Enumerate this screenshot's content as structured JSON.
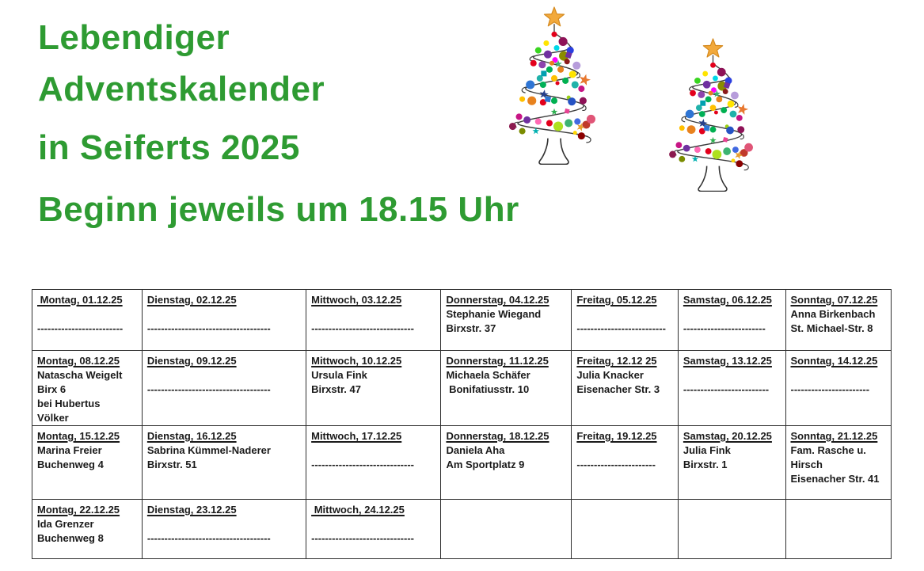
{
  "title": {
    "lines": [
      "Lebendiger",
      "Adventskalender",
      "in Seiferts 2025",
      "Beginn jeweils um 18.15 Uhr"
    ],
    "color": "#2e9b32"
  },
  "decorations": {
    "tree_count": 2,
    "tree_icon": "christmas-tree-icon",
    "star_color": "#f2a93c",
    "garland_color": "#3d3d3d",
    "ornament_palette": [
      "#e3001b",
      "#8e1257",
      "#ffe400",
      "#00d8e8",
      "#39d520",
      "#2a3fe0",
      "#7030a0",
      "#8a8c00",
      "#ff00ff",
      "#e8821e",
      "#b79ddb",
      "#00b057",
      "#20b2aa",
      "#ffc000",
      "#2e75d4",
      "#c71585",
      "#ff69b4",
      "#aee01f",
      "#3cb371",
      "#4169e1",
      "#8b0000",
      "#8b1a4f",
      "#c0392b",
      "#e05577"
    ]
  },
  "table": {
    "rows": [
      [
        [
          " Montag, 01.12.25",
          "",
          "-------------------------"
        ],
        [
          "Dienstag, 02.12.25",
          "",
          "------------------------------------"
        ],
        [
          "Mittwoch, 03.12.25",
          "",
          "------------------------------"
        ],
        [
          "Donnerstag, 04.12.25",
          "Stephanie Wiegand",
          "Birxstr. 37"
        ],
        [
          "Freitag, 05.12.25",
          "",
          "--------------------------"
        ],
        [
          "Samstag, 06.12.25",
          "",
          "------------------------"
        ],
        [
          "Sonntag, 07.12.25",
          "Anna Birkenbach",
          "St. Michael-Str. 8"
        ]
      ],
      [
        [
          "Montag, 08.12.25",
          "Natascha Weigelt",
          "Birx 6",
          "bei Hubertus",
          "Völker"
        ],
        [
          "Dienstag, 09.12.25",
          "",
          "------------------------------------"
        ],
        [
          "Mittwoch, 10.12.25",
          "Ursula Fink",
          "Birxstr. 47"
        ],
        [
          "Donnerstag, 11.12.25",
          "Michaela Schäfer",
          " Bonifatiusstr. 10"
        ],
        [
          "Freitag, 12.12 25",
          "Julia Knacker",
          "Eisenacher Str. 3"
        ],
        [
          "Samstag, 13.12.25",
          "",
          "-------------------------"
        ],
        [
          "Sonntag, 14.12.25",
          "",
          "-----------------------"
        ]
      ],
      [
        [
          "Montag, 15.12.25",
          "Marina Freier",
          "Buchenweg 4"
        ],
        [
          "Dienstag, 16.12.25",
          "Sabrina Kümmel-Naderer",
          "Birxstr. 51"
        ],
        [
          "Mittwoch, 17.12.25",
          "",
          "------------------------------"
        ],
        [
          "Donnerstag, 18.12.25",
          "Daniela Aha",
          "Am Sportplatz 9"
        ],
        [
          "Freitag, 19.12.25",
          "",
          "-----------------------"
        ],
        [
          "Samstag, 20.12.25",
          "Julia Fink",
          "Birxstr. 1"
        ],
        [
          "Sonntag, 21.12.25",
          "Fam. Rasche u.",
          "Hirsch",
          "Eisenacher Str. 41"
        ]
      ],
      [
        [
          "Montag, 22.12.25",
          "Ida Grenzer",
          "Buchenweg 8"
        ],
        [
          "Dienstag, 23.12.25",
          "",
          "------------------------------------"
        ],
        [
          " Mittwoch, 24.12.25",
          "",
          "------------------------------"
        ],
        [],
        [],
        [],
        []
      ]
    ]
  }
}
